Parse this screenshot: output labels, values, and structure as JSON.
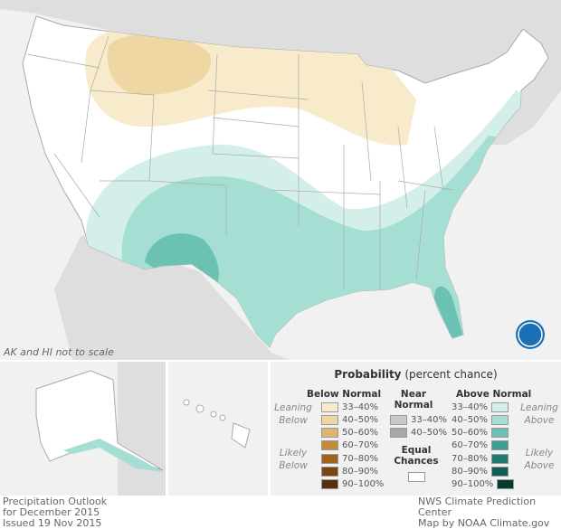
{
  "map": {
    "note": "AK and HI not to scale",
    "logo": "NOAA"
  },
  "legend": {
    "title": "Probability",
    "title_suffix": "(percent chance)",
    "below": {
      "heading": "Below Normal",
      "leaning": "Leaning Below",
      "likely": "Likely Below",
      "items": [
        {
          "label": "33–40%",
          "color": "#f8ebcb"
        },
        {
          "label": "40–50%",
          "color": "#efd7a3"
        },
        {
          "label": "50–60%",
          "color": "#ddb56e"
        },
        {
          "label": "60–70%",
          "color": "#c58a3a"
        },
        {
          "label": "70–80%",
          "color": "#a1631b"
        },
        {
          "label": "80–90%",
          "color": "#7a4510"
        },
        {
          "label": "90–100%",
          "color": "#55300a"
        }
      ]
    },
    "near": {
      "heading": "Near Normal",
      "items": [
        {
          "label": "33–40%",
          "color": "#c9c9c9"
        },
        {
          "label": "40–50%",
          "color": "#a7a7a7"
        }
      ]
    },
    "equal": {
      "heading": "Equal Chances",
      "color": "#ffffff"
    },
    "above": {
      "heading": "Above Normal",
      "leaning": "Leaning Above",
      "likely": "Likely Above",
      "items": [
        {
          "label": "33–40%",
          "color": "#d4efea"
        },
        {
          "label": "40–50%",
          "color": "#a5dfd3"
        },
        {
          "label": "50–60%",
          "color": "#6cc2b2"
        },
        {
          "label": "60–70%",
          "color": "#3c9e91"
        },
        {
          "label": "70–80%",
          "color": "#1d7b6f"
        },
        {
          "label": "80–90%",
          "color": "#0d5e52"
        },
        {
          "label": "90–100%",
          "color": "#053a30"
        }
      ]
    }
  },
  "footer": {
    "left": [
      "Precipitation Outlook",
      "for December 2015",
      "Issued 19 Nov 2015"
    ],
    "right": [
      "NWS Climate Prediction Center",
      "Map by NOAA Climate.gov"
    ]
  }
}
